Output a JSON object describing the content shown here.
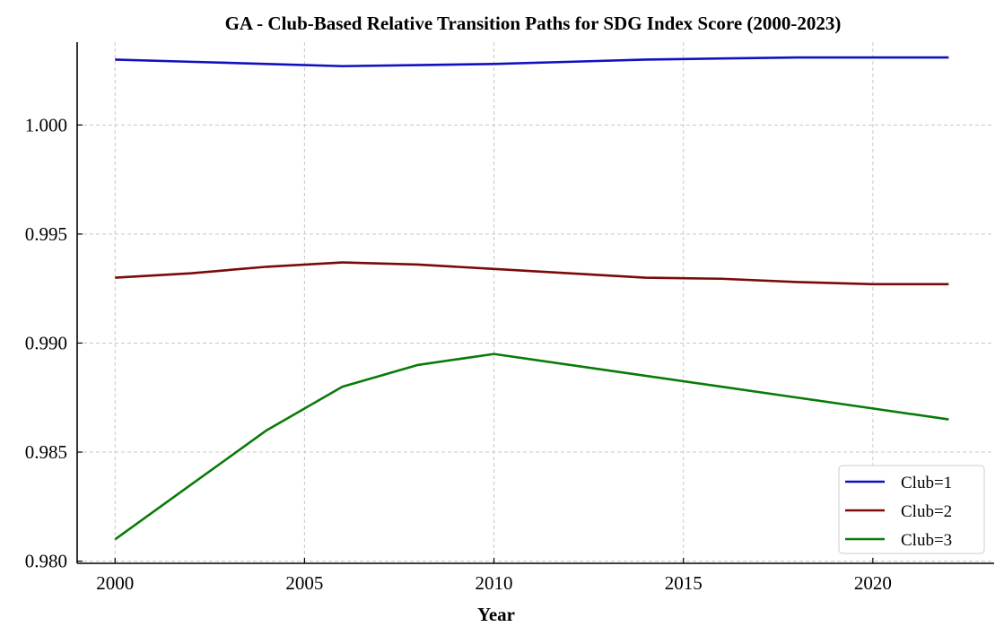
{
  "chart_data": {
    "type": "line",
    "title": "GA - Club-Based Relative Transition Paths for SDG Index Score (2000-2023)",
    "xlabel": "Year",
    "ylabel": "",
    "xlim": [
      1999,
      2023.2
    ],
    "ylim": [
      0.9799,
      1.0038
    ],
    "xticks": [
      2000,
      2005,
      2010,
      2015,
      2020
    ],
    "xtick_labels": [
      "2000",
      "2005",
      "2010",
      "2015",
      "2020"
    ],
    "yticks": [
      0.98,
      0.985,
      0.99,
      0.995,
      1.0
    ],
    "ytick_labels": [
      "0.980",
      "0.985",
      "0.990",
      "0.995",
      "1.000"
    ],
    "grid": true,
    "legend_position": "bottom-right",
    "x": [
      2000,
      2002,
      2004,
      2006,
      2008,
      2010,
      2012,
      2014,
      2016,
      2018,
      2020,
      2022
    ],
    "series": [
      {
        "name": "Club=1",
        "color": "#1010c0",
        "values": [
          1.003,
          1.0029,
          1.0028,
          1.0027,
          1.00275,
          1.0028,
          1.0029,
          1.003,
          1.00305,
          1.0031,
          1.0031,
          1.0031
        ]
      },
      {
        "name": "Club=2",
        "color": "#7a0a0a",
        "values": [
          0.993,
          0.9932,
          0.9935,
          0.9937,
          0.9936,
          0.9934,
          0.9932,
          0.993,
          0.99295,
          0.9928,
          0.9927,
          0.9927
        ]
      },
      {
        "name": "Club=3",
        "color": "#0a7a0a",
        "values": [
          0.981,
          0.9835,
          0.986,
          0.988,
          0.989,
          0.9895,
          0.989,
          0.9885,
          0.988,
          0.9875,
          0.987,
          0.9865
        ]
      }
    ]
  }
}
